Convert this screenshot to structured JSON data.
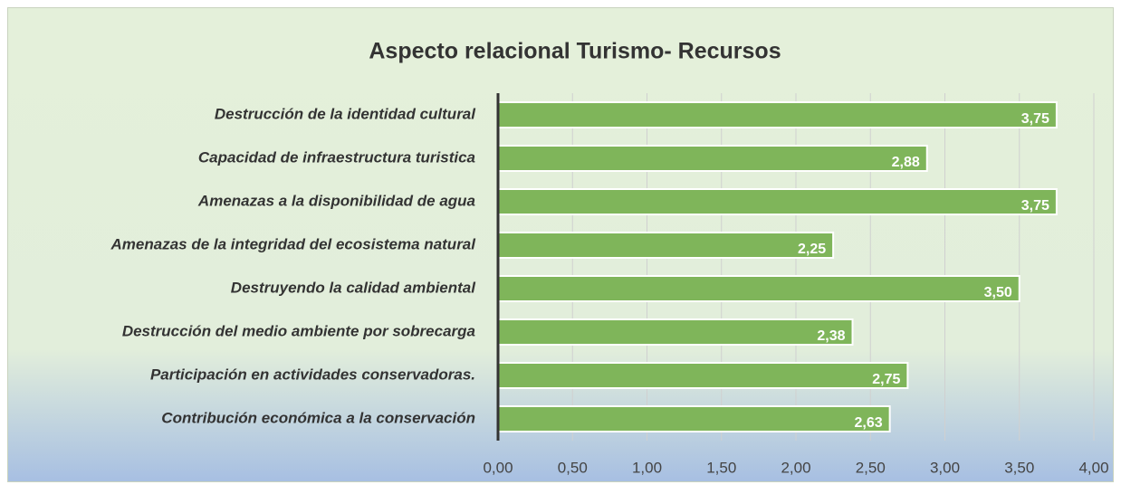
{
  "chart_data": {
    "type": "bar",
    "orientation": "horizontal",
    "title": "Aspecto relacional Turismo- Recursos",
    "categories": [
      "Destrucción de la identidad cultural",
      "Capacidad de infraestructura turistica",
      "Amenazas a la disponibilidad de agua",
      "Amenazas de la integridad del ecosistema natural",
      "Destruyendo la calidad ambiental",
      "Destrucción del medio ambiente por sobrecarga",
      "Participación en actividades conservadoras.",
      "Contribución económica a la conservación"
    ],
    "values": [
      3.75,
      2.88,
      3.75,
      2.25,
      3.5,
      2.38,
      2.75,
      2.63
    ],
    "value_labels": [
      "3,75",
      "2,88",
      "3,75",
      "2,25",
      "3,50",
      "2,38",
      "2,75",
      "2,63"
    ],
    "color": "#7fb55a",
    "xlim": [
      0,
      4
    ],
    "xticks": [
      {
        "value": 0,
        "label": "0,00"
      },
      {
        "value": 0.5,
        "label": "0,50"
      },
      {
        "value": 1,
        "label": "1,00"
      },
      {
        "value": 1.5,
        "label": "1,50"
      },
      {
        "value": 2,
        "label": "2,00"
      },
      {
        "value": 2.5,
        "label": "2,50"
      },
      {
        "value": 3,
        "label": "3,00"
      },
      {
        "value": 3.5,
        "label": "3,50"
      },
      {
        "value": 4,
        "label": "4,00"
      }
    ],
    "grid": true
  }
}
